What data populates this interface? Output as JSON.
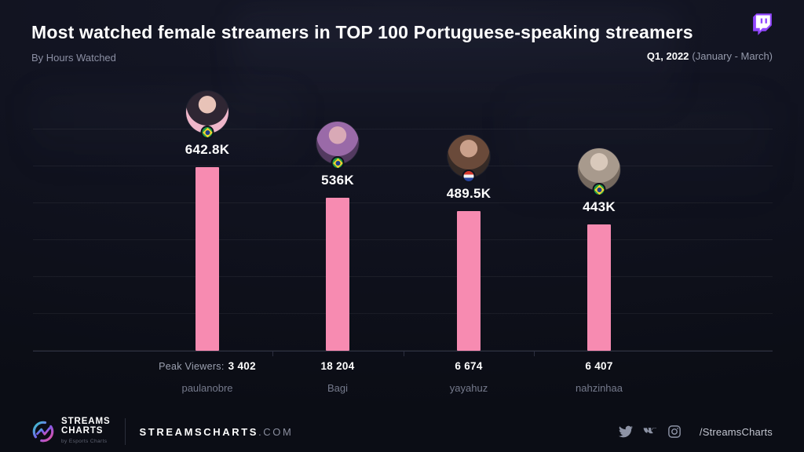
{
  "header": {
    "title": "Most watched female streamers in TOP 100 Portuguese-speaking streamers",
    "subtitle": "By Hours Watched",
    "period_bold": "Q1, 2022",
    "period_detail": "(January - March)"
  },
  "chart_data": {
    "type": "bar",
    "title": "Most watched female streamers in TOP 100 Portuguese-speaking streamers",
    "metric": "Hours Watched",
    "categories": [
      "paulanobre",
      "Bagi",
      "yayahuz",
      "nahzinhaa"
    ],
    "series": [
      {
        "name": "Hours Watched",
        "values": [
          642800,
          536000,
          489500,
          443000
        ]
      }
    ],
    "value_labels": [
      "642.8K",
      "536K",
      "489.5K",
      "443K"
    ],
    "peak_viewers_prefix": "Peak Viewers:",
    "peak_viewers": [
      "3 402",
      "18 204",
      "6 674",
      "6 407"
    ],
    "ylim": [
      0,
      650000
    ],
    "grid": true,
    "legend": "none",
    "bar_color": "#F78BB1",
    "streamers": [
      {
        "name": "paulanobre",
        "value_label": "642.8K",
        "peak": "3 402",
        "flag": "brazil",
        "avatar_colors": [
          "#e8c3b8",
          "#2f2633",
          "#efb6ca"
        ]
      },
      {
        "name": "Bagi",
        "value_label": "536K",
        "peak": "18 204",
        "flag": "brazil",
        "avatar_colors": [
          "#d9a9b6",
          "#9a6aa8",
          "#533a60"
        ]
      },
      {
        "name": "yayahuz",
        "value_label": "489.5K",
        "peak": "6 674",
        "flag": "paraguay",
        "avatar_colors": [
          "#caa08b",
          "#6a4a3a",
          "#352a26"
        ]
      },
      {
        "name": "nahzinhaa",
        "value_label": "443K",
        "peak": "6 407",
        "flag": "brazil",
        "avatar_colors": [
          "#d9c9bb",
          "#a89a8d",
          "#75695f"
        ]
      }
    ],
    "flag_colors": {
      "brazil_green": "#1e9e48",
      "brazil_yellow": "#f5d42c",
      "brazil_blue": "#1b3e8c",
      "paraguay_red": "#d6392e",
      "paraguay_white": "#f2f2f2",
      "paraguay_blue": "#27439c"
    },
    "accent_twitch_purple": "#9146FF"
  },
  "footer": {
    "brand_line1": "STREAMS",
    "brand_line2": "CHARTS",
    "brand_sub": "by Esports Charts",
    "site_name": "STREAMSCHARTS",
    "site_tld": ".COM",
    "handle": "/StreamsCharts"
  }
}
